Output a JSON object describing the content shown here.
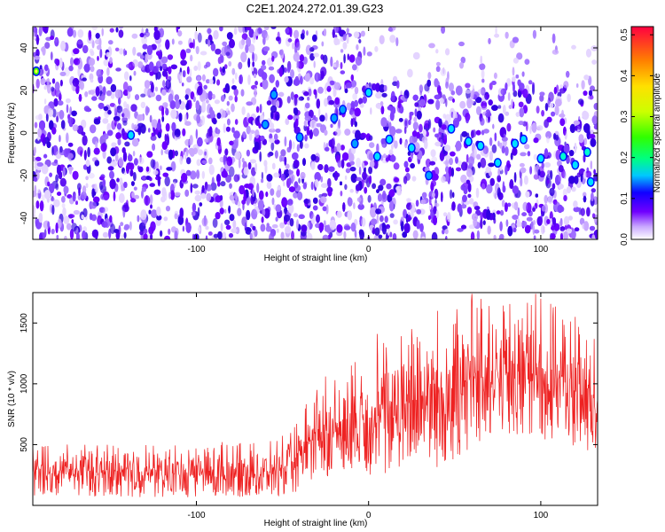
{
  "chart_data": [
    {
      "type": "heatmap",
      "title": "C2E1.2024.272.01.39.G23",
      "xlabel": "Height of straight line (km)",
      "ylabel": "Frequency (Hz)",
      "xlim": [
        -195,
        133
      ],
      "ylim": [
        -50,
        50
      ],
      "xticks": [
        -100,
        0,
        100
      ],
      "yticks": [
        -40,
        -20,
        0,
        20,
        40
      ],
      "grid": false,
      "colorbar": {
        "label": "Normalized spectral amplitude",
        "range": [
          0.0,
          0.52
        ],
        "ticks": [
          0.0,
          0.1,
          0.2,
          0.3,
          0.4,
          0.5
        ],
        "tick_labels": [
          "0.0",
          "0.1",
          "0.2",
          "0.3",
          "0.4",
          "0.5"
        ],
        "colors": [
          "#ffffff",
          "#a86cff",
          "#6a00ff",
          "#0000ff",
          "#00ffff",
          "#00ff00",
          "#ffff00",
          "#ff8000",
          "#ff0040"
        ]
      },
      "texture": "dense speckle of purple/violet blobs; upper-right region (x>0, f>25 Hz) sparse pale lavender; scattered cyan/green maxima, mostly near 0 to -20 Hz for x>0",
      "hotspots": [
        {
          "x": -193,
          "y": 29,
          "v": 0.3
        },
        {
          "x": -138,
          "y": -1,
          "v": 0.14
        },
        {
          "x": -60,
          "y": 4,
          "v": 0.12
        },
        {
          "x": -55,
          "y": 18,
          "v": 0.12
        },
        {
          "x": -40,
          "y": -2,
          "v": 0.11
        },
        {
          "x": -20,
          "y": 7,
          "v": 0.12
        },
        {
          "x": -15,
          "y": 11,
          "v": 0.12
        },
        {
          "x": 0,
          "y": 19,
          "v": 0.14
        },
        {
          "x": -8,
          "y": -5,
          "v": 0.13
        },
        {
          "x": 5,
          "y": -11,
          "v": 0.15
        },
        {
          "x": 12,
          "y": -3,
          "v": 0.14
        },
        {
          "x": 25,
          "y": -7,
          "v": 0.15
        },
        {
          "x": 35,
          "y": -20,
          "v": 0.13
        },
        {
          "x": 48,
          "y": 2,
          "v": 0.15
        },
        {
          "x": 58,
          "y": -4,
          "v": 0.14
        },
        {
          "x": 65,
          "y": -6,
          "v": 0.16
        },
        {
          "x": 75,
          "y": -14,
          "v": 0.14
        },
        {
          "x": 85,
          "y": -5,
          "v": 0.15
        },
        {
          "x": 90,
          "y": -3,
          "v": 0.16
        },
        {
          "x": 100,
          "y": -12,
          "v": 0.15
        },
        {
          "x": 113,
          "y": -11,
          "v": 0.18
        },
        {
          "x": 120,
          "y": -15,
          "v": 0.15
        },
        {
          "x": 127,
          "y": -9,
          "v": 0.17
        },
        {
          "x": 129,
          "y": -23,
          "v": 0.15
        }
      ]
    },
    {
      "type": "line",
      "title": "",
      "xlabel": "Height of straight line (km)",
      "ylabel": "SNR (10 * v/v)",
      "xlim": [
        -195,
        133
      ],
      "ylim": [
        0,
        1750
      ],
      "xticks": [
        -100,
        0,
        100
      ],
      "yticks": [
        500,
        1000,
        1500
      ],
      "grid": false,
      "series": [
        {
          "color": "#ee2222",
          "style": "noisy trace, one sample every ~0.25 km",
          "envelope": {
            "x": [
              -195,
              -150,
              -100,
              -60,
              -45,
              -35,
              -30,
              -20,
              -10,
              0,
              10,
              30,
              40,
              60,
              80,
              100,
              115,
              133
            ],
            "low": [
              80,
              70,
              60,
              70,
              90,
              150,
              220,
              250,
              300,
              250,
              250,
              400,
              300,
              450,
              550,
              550,
              500,
              400
            ],
            "high": [
              500,
              500,
              500,
              520,
              600,
              900,
              950,
              1050,
              1150,
              1300,
              1400,
              1500,
              1550,
              1700,
              1700,
              1750,
              1550,
              1400
            ]
          },
          "peaks": [
            {
              "x": -195,
              "y": 505
            },
            {
              "x": -175,
              "y": 500
            },
            {
              "x": -125,
              "y": 490
            },
            {
              "x": -85,
              "y": 520
            },
            {
              "x": -30,
              "y": 950
            },
            {
              "x": -25,
              "y": 1060
            },
            {
              "x": -10,
              "y": 1150
            },
            {
              "x": 5,
              "y": 1410
            },
            {
              "x": 25,
              "y": 1450
            },
            {
              "x": 40,
              "y": 1600
            },
            {
              "x": 60,
              "y": 1740
            },
            {
              "x": 70,
              "y": 1640
            },
            {
              "x": 97,
              "y": 1740
            },
            {
              "x": 100,
              "y": 1700
            },
            {
              "x": 120,
              "y": 1550
            }
          ]
        }
      ]
    }
  ]
}
